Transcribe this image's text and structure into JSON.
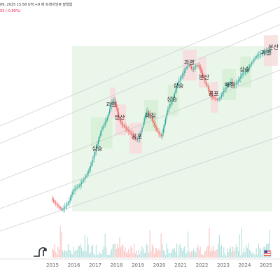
{
  "header": {
    "meta_text": "09, 2025 15:58 UTC+9 에 트레이딩뷰 발행함",
    "change_text": "93 (-0.89%)"
  },
  "logo": {
    "name": "tradingview-logo-icon",
    "text": "TV"
  },
  "flag": {
    "name": "us-flag-icon"
  },
  "colors": {
    "up": "#26a69a",
    "down": "#ef5350",
    "zone_green": "#d7efd7",
    "zone_red": "#f6dede",
    "channel_line": "#cfcfcf",
    "background": "#ffffff"
  },
  "chart_data": {
    "type": "candlestick",
    "title": "",
    "x_axis": {
      "ticks": [
        "2015",
        "2016",
        "2017",
        "2018",
        "2019",
        "2020",
        "2021",
        "2022",
        "2023",
        "2024",
        "2025"
      ]
    },
    "y_scale": "log",
    "channel_lines": 5,
    "phases": [
      {
        "label": "상승",
        "year": 2017.1,
        "zone": "green",
        "zone_start": 2016.8,
        "zone_end": 2017.8
      },
      {
        "label": "과열",
        "year": 2017.75,
        "zone": "red",
        "zone_start": 2017.7,
        "zone_end": 2017.95
      },
      {
        "label": "분산",
        "year": 2018.15,
        "zone": "red",
        "zone_start": 2017.95,
        "zone_end": 2018.45
      },
      {
        "label": "공포",
        "year": 2018.95,
        "zone": "red",
        "zone_start": 2018.6,
        "zone_end": 2019.2
      },
      {
        "label": "매집",
        "year": 2019.6,
        "zone": "green",
        "zone_start": 2019.3,
        "zone_end": 2019.95
      },
      {
        "label": "상승",
        "year": 2020.6,
        "zone": "green",
        "zone_start": 2020.4,
        "zone_end": 2020.9
      },
      {
        "label": "상승",
        "year": 2020.9,
        "zone": "none"
      },
      {
        "label": "과열",
        "year": 2021.4,
        "zone": "red",
        "zone_start": 2021.1,
        "zone_end": 2021.75
      },
      {
        "label": "분산",
        "year": 2022.1,
        "zone": "red",
        "zone_start": 2021.85,
        "zone_end": 2022.2
      },
      {
        "label": "공포",
        "year": 2022.55,
        "zone": "red",
        "zone_start": 2022.4,
        "zone_end": 2022.75
      },
      {
        "label": "매집",
        "year": 2023.3,
        "zone": "green",
        "zone_start": 2022.95,
        "zone_end": 2023.6
      },
      {
        "label": "상승",
        "year": 2024.0,
        "zone": "green",
        "zone_start": 2023.8,
        "zone_end": 2024.3
      },
      {
        "label": "과열",
        "year": 2025.0,
        "zone": "red",
        "zone_start": 2024.9,
        "zone_end": 2025.3
      },
      {
        "label": "분산",
        "year": 2025.35,
        "zone": "red",
        "zone_start": 2025.3,
        "zone_end": 2025.55
      }
    ]
  }
}
